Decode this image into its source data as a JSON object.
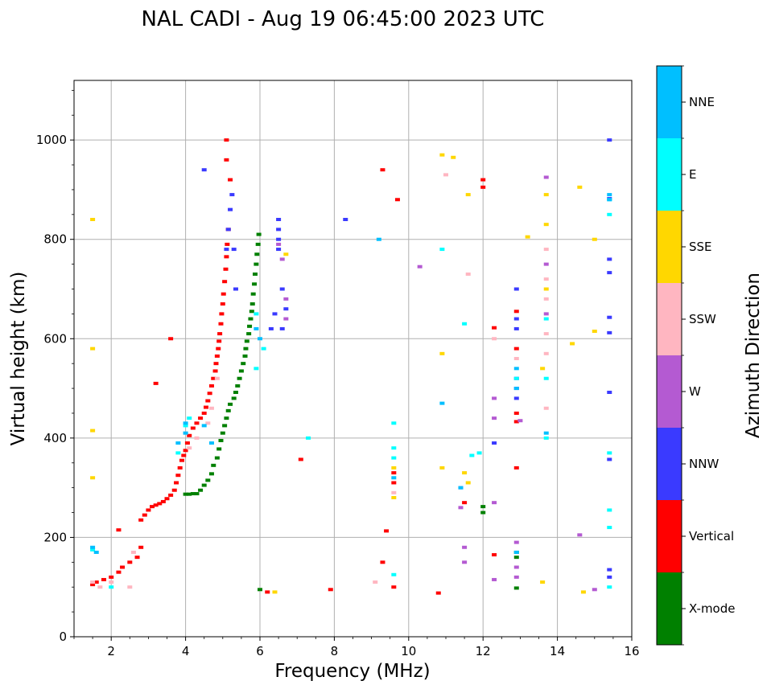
{
  "chart_data": {
    "type": "scatter",
    "title": "NAL CADI - Aug 19 06:45:00 2023 UTC",
    "xlabel": "Frequency (MHz)",
    "ylabel": "Virtual height (km)",
    "xlim": [
      1.0,
      16.0
    ],
    "ylim": [
      0,
      1120
    ],
    "xticks": [
      2,
      4,
      6,
      8,
      10,
      12,
      14,
      16
    ],
    "xtick_labels": [
      "2",
      "4",
      "6",
      "8",
      "10",
      "12",
      "14",
      "16"
    ],
    "yticks": [
      0,
      200,
      400,
      600,
      800,
      1000
    ],
    "ytick_labels": [
      "0",
      "200",
      "400",
      "600",
      "800",
      "1000"
    ],
    "grid": true,
    "colorbar": {
      "label": "Azimuth Direction",
      "categories": [
        "X-mode",
        "Vertical",
        "NNW",
        "W",
        "SSW",
        "SSE",
        "E",
        "NNE"
      ],
      "colors": [
        "#008000",
        "#ff0000",
        "#3a3aff",
        "#b45ad2",
        "#ffb6c1",
        "#ffd700",
        "#00ffff",
        "#00bfff"
      ]
    },
    "series": [
      {
        "name": "X-mode",
        "points": [
          [
            4.0,
            287
          ],
          [
            4.1,
            287
          ],
          [
            4.2,
            288
          ],
          [
            4.3,
            288
          ],
          [
            4.4,
            295
          ],
          [
            4.5,
            305
          ],
          [
            4.6,
            315
          ],
          [
            4.7,
            328
          ],
          [
            4.75,
            345
          ],
          [
            4.85,
            360
          ],
          [
            4.9,
            378
          ],
          [
            4.95,
            395
          ],
          [
            5.0,
            410
          ],
          [
            5.05,
            425
          ],
          [
            5.1,
            440
          ],
          [
            5.15,
            455
          ],
          [
            5.2,
            468
          ],
          [
            5.3,
            480
          ],
          [
            5.35,
            492
          ],
          [
            5.4,
            505
          ],
          [
            5.45,
            520
          ],
          [
            5.5,
            535
          ],
          [
            5.55,
            550
          ],
          [
            5.6,
            565
          ],
          [
            5.62,
            580
          ],
          [
            5.65,
            595
          ],
          [
            5.7,
            610
          ],
          [
            5.72,
            625
          ],
          [
            5.75,
            640
          ],
          [
            5.78,
            655
          ],
          [
            5.8,
            670
          ],
          [
            5.82,
            690
          ],
          [
            5.85,
            710
          ],
          [
            5.87,
            730
          ],
          [
            5.9,
            750
          ],
          [
            5.92,
            770
          ],
          [
            5.95,
            790
          ],
          [
            5.97,
            810
          ],
          [
            6.0,
            95
          ],
          [
            12.0,
            250
          ],
          [
            12.0,
            262
          ],
          [
            12.9,
            98
          ],
          [
            12.9,
            160
          ],
          [
            12.9,
            170
          ]
        ]
      },
      {
        "name": "Vertical",
        "points": [
          [
            1.5,
            105
          ],
          [
            1.6,
            110
          ],
          [
            1.8,
            115
          ],
          [
            2.0,
            120
          ],
          [
            2.2,
            130
          ],
          [
            2.3,
            140
          ],
          [
            2.5,
            150
          ],
          [
            2.7,
            160
          ],
          [
            2.8,
            180
          ],
          [
            2.2,
            215
          ],
          [
            2.8,
            235
          ],
          [
            2.9,
            245
          ],
          [
            3.0,
            255
          ],
          [
            3.1,
            262
          ],
          [
            3.2,
            265
          ],
          [
            3.3,
            268
          ],
          [
            3.4,
            272
          ],
          [
            3.5,
            278
          ],
          [
            3.6,
            285
          ],
          [
            3.7,
            295
          ],
          [
            3.75,
            310
          ],
          [
            3.8,
            325
          ],
          [
            3.85,
            340
          ],
          [
            3.9,
            355
          ],
          [
            3.95,
            365
          ],
          [
            4.0,
            375
          ],
          [
            4.05,
            390
          ],
          [
            4.1,
            405
          ],
          [
            4.2,
            420
          ],
          [
            4.3,
            430
          ],
          [
            4.4,
            440
          ],
          [
            4.5,
            450
          ],
          [
            4.55,
            462
          ],
          [
            4.6,
            475
          ],
          [
            4.65,
            490
          ],
          [
            4.7,
            505
          ],
          [
            4.75,
            520
          ],
          [
            4.8,
            535
          ],
          [
            4.82,
            550
          ],
          [
            4.85,
            565
          ],
          [
            4.88,
            580
          ],
          [
            4.9,
            595
          ],
          [
            4.92,
            610
          ],
          [
            4.95,
            630
          ],
          [
            4.97,
            650
          ],
          [
            5.0,
            670
          ],
          [
            5.02,
            690
          ],
          [
            5.05,
            715
          ],
          [
            5.08,
            740
          ],
          [
            5.1,
            765
          ],
          [
            5.12,
            790
          ],
          [
            5.15,
            820
          ],
          [
            5.1,
            960
          ],
          [
            5.1,
            1000
          ],
          [
            5.2,
            920
          ],
          [
            3.2,
            510
          ],
          [
            3.6,
            600
          ],
          [
            6.2,
            90
          ],
          [
            7.1,
            357
          ],
          [
            7.9,
            95
          ],
          [
            9.3,
            940
          ],
          [
            9.4,
            213
          ],
          [
            9.3,
            150
          ],
          [
            9.6,
            310
          ],
          [
            9.6,
            330
          ],
          [
            9.6,
            100
          ],
          [
            9.7,
            880
          ],
          [
            10.8,
            88
          ],
          [
            11.5,
            270
          ],
          [
            12.0,
            905
          ],
          [
            12.0,
            920
          ],
          [
            12.3,
            622
          ],
          [
            12.3,
            165
          ],
          [
            12.9,
            433
          ],
          [
            12.9,
            450
          ],
          [
            12.9,
            340
          ],
          [
            12.9,
            580
          ],
          [
            12.9,
            655
          ]
        ]
      },
      {
        "name": "NNW",
        "points": [
          [
            5.1,
            780
          ],
          [
            5.15,
            820
          ],
          [
            5.2,
            860
          ],
          [
            5.25,
            890
          ],
          [
            5.3,
            780
          ],
          [
            5.35,
            700
          ],
          [
            6.5,
            780
          ],
          [
            6.5,
            800
          ],
          [
            6.5,
            820
          ],
          [
            6.5,
            840
          ],
          [
            6.6,
            700
          ],
          [
            6.7,
            660
          ],
          [
            6.4,
            650
          ],
          [
            6.3,
            620
          ],
          [
            6.6,
            620
          ],
          [
            4.5,
            940
          ],
          [
            8.3,
            840
          ],
          [
            12.3,
            390
          ],
          [
            12.9,
            500
          ],
          [
            12.9,
            520
          ],
          [
            12.9,
            480
          ],
          [
            12.9,
            620
          ],
          [
            12.9,
            640
          ],
          [
            12.9,
            700
          ],
          [
            15.4,
            1000
          ],
          [
            15.4,
            882
          ],
          [
            15.4,
            760
          ],
          [
            15.4,
            733
          ],
          [
            15.4,
            643
          ],
          [
            15.4,
            612
          ],
          [
            15.4,
            492
          ],
          [
            15.4,
            357
          ],
          [
            15.4,
            135
          ],
          [
            15.4,
            120
          ]
        ]
      },
      {
        "name": "W",
        "points": [
          [
            6.5,
            790
          ],
          [
            6.6,
            760
          ],
          [
            6.7,
            680
          ],
          [
            6.7,
            640
          ],
          [
            12.3,
            480
          ],
          [
            12.3,
            440
          ],
          [
            12.3,
            270
          ],
          [
            12.3,
            115
          ],
          [
            12.9,
            190
          ],
          [
            12.9,
            140
          ],
          [
            12.9,
            120
          ],
          [
            13.0,
            435
          ],
          [
            13.7,
            925
          ],
          [
            13.7,
            650
          ],
          [
            13.7,
            750
          ],
          [
            10.3,
            745
          ],
          [
            11.4,
            300
          ],
          [
            11.4,
            260
          ],
          [
            11.5,
            150
          ],
          [
            11.5,
            180
          ],
          [
            14.6,
            205
          ],
          [
            15.0,
            95
          ]
        ]
      },
      {
        "name": "SSW",
        "points": [
          [
            1.5,
            110
          ],
          [
            1.7,
            100
          ],
          [
            2.0,
            110
          ],
          [
            2.5,
            100
          ],
          [
            2.6,
            170
          ],
          [
            4.0,
            410
          ],
          [
            4.1,
            380
          ],
          [
            4.3,
            400
          ],
          [
            4.6,
            430
          ],
          [
            4.7,
            460
          ],
          [
            4.85,
            520
          ],
          [
            9.1,
            110
          ],
          [
            9.6,
            290
          ],
          [
            12.3,
            600
          ],
          [
            12.9,
            560
          ],
          [
            13.7,
            780
          ],
          [
            13.7,
            680
          ],
          [
            13.7,
            720
          ],
          [
            13.7,
            610
          ],
          [
            13.7,
            570
          ],
          [
            13.7,
            460
          ],
          [
            11.6,
            730
          ],
          [
            11.0,
            930
          ]
        ]
      },
      {
        "name": "SSE",
        "points": [
          [
            1.5,
            840
          ],
          [
            1.5,
            415
          ],
          [
            1.5,
            580
          ],
          [
            1.5,
            320
          ],
          [
            6.4,
            90
          ],
          [
            6.7,
            770
          ],
          [
            9.6,
            340
          ],
          [
            9.6,
            280
          ],
          [
            10.9,
            570
          ],
          [
            10.9,
            970
          ],
          [
            10.9,
            340
          ],
          [
            11.2,
            965
          ],
          [
            11.5,
            330
          ],
          [
            11.6,
            890
          ],
          [
            11.6,
            310
          ],
          [
            13.7,
            830
          ],
          [
            13.7,
            890
          ],
          [
            13.7,
            700
          ],
          [
            13.6,
            540
          ],
          [
            13.6,
            110
          ],
          [
            14.4,
            590
          ],
          [
            14.6,
            905
          ],
          [
            15.0,
            800
          ],
          [
            15.0,
            615
          ],
          [
            14.7,
            90
          ],
          [
            13.2,
            805
          ]
        ]
      },
      {
        "name": "E",
        "points": [
          [
            1.5,
            175
          ],
          [
            2.0,
            100
          ],
          [
            3.8,
            370
          ],
          [
            4.0,
            425
          ],
          [
            4.1,
            440
          ],
          [
            5.9,
            650
          ],
          [
            5.9,
            540
          ],
          [
            6.1,
            580
          ],
          [
            7.3,
            400
          ],
          [
            9.6,
            360
          ],
          [
            9.6,
            380
          ],
          [
            9.6,
            430
          ],
          [
            9.6,
            125
          ],
          [
            11.9,
            370
          ],
          [
            11.7,
            365
          ],
          [
            12.9,
            520
          ],
          [
            13.7,
            640
          ],
          [
            13.7,
            520
          ],
          [
            13.7,
            400
          ],
          [
            15.4,
            880
          ],
          [
            15.4,
            850
          ],
          [
            15.4,
            370
          ],
          [
            15.4,
            255
          ],
          [
            15.4,
            220
          ],
          [
            15.4,
            100
          ],
          [
            10.9,
            780
          ],
          [
            11.5,
            630
          ]
        ]
      },
      {
        "name": "NNE",
        "points": [
          [
            1.5,
            180
          ],
          [
            1.6,
            170
          ],
          [
            3.8,
            390
          ],
          [
            4.0,
            410
          ],
          [
            4.0,
            430
          ],
          [
            4.5,
            425
          ],
          [
            4.7,
            390
          ],
          [
            5.9,
            620
          ],
          [
            6.0,
            600
          ],
          [
            9.6,
            320
          ],
          [
            9.2,
            800
          ],
          [
            10.9,
            470
          ],
          [
            11.4,
            300
          ],
          [
            12.9,
            170
          ],
          [
            12.9,
            500
          ],
          [
            12.9,
            540
          ],
          [
            13.7,
            410
          ],
          [
            15.4,
            890
          ],
          [
            15.4,
            880
          ]
        ]
      }
    ]
  }
}
